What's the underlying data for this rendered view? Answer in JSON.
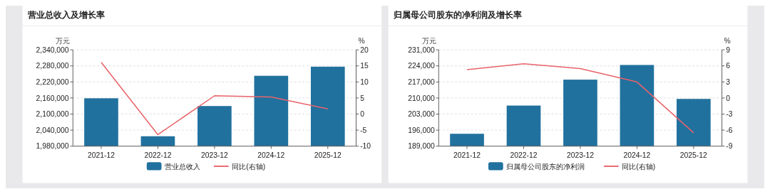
{
  "chart_data": [
    {
      "type": "bar",
      "title": "营业总收入及增长率",
      "categories": [
        "2021-12",
        "2022-12",
        "2023-12",
        "2024-12",
        "2025-12"
      ],
      "ylabel": "万元",
      "y2label": "%",
      "ylim": [
        1980000,
        2340000
      ],
      "yticks": [
        {
          "value": 1980000,
          "label": "1,980,000"
        },
        {
          "value": 2040000,
          "label": "2,040,000"
        },
        {
          "value": 2100000,
          "label": "2,100,000"
        },
        {
          "value": 2160000,
          "label": "2,160,000"
        },
        {
          "value": 2220000,
          "label": "2,220,000"
        },
        {
          "value": 2280000,
          "label": "2,280,000"
        },
        {
          "value": 2340000,
          "label": "2,340,000"
        }
      ],
      "y2lim": [
        -10,
        20
      ],
      "y2ticks": [
        -10,
        -5,
        0,
        5,
        10,
        15,
        20
      ],
      "grid": "y",
      "legend": "bottom",
      "series": [
        {
          "name": "营业总收入",
          "color": "#21719e",
          "values": [
            2159000,
            2017000,
            2130000,
            2243000,
            2277000
          ]
        },
        {
          "name": "同比(右轴)",
          "type": "line",
          "axis": "y2",
          "color": "#e8636a",
          "values": [
            16.1,
            -6.4,
            5.7,
            5.3,
            1.6
          ]
        }
      ]
    },
    {
      "type": "bar",
      "title": "归属母公司股东的净利润及增长率",
      "categories": [
        "2021-12",
        "2022-12",
        "2023-12",
        "2024-12",
        "2025-12"
      ],
      "ylabel": "万元",
      "y2label": "%",
      "ylim": [
        189000,
        231000
      ],
      "yticks": [
        {
          "value": 189000,
          "label": "189,000"
        },
        {
          "value": 196000,
          "label": "196,000"
        },
        {
          "value": 203000,
          "label": "203,000"
        },
        {
          "value": 210000,
          "label": "210,000"
        },
        {
          "value": 217000,
          "label": "217,000"
        },
        {
          "value": 224000,
          "label": "224,000"
        },
        {
          "value": 231000,
          "label": "231,000"
        }
      ],
      "y2lim": [
        -9,
        9
      ],
      "y2ticks": [
        -9,
        -6,
        -3,
        0,
        3,
        6,
        9
      ],
      "grid": "y",
      "legend": "bottom",
      "series": [
        {
          "name": "归属母公司股东的净利润",
          "color": "#21719e",
          "values": [
            194400,
            206700,
            218000,
            224400,
            209600
          ]
        },
        {
          "name": "同比(右轴)",
          "type": "line",
          "axis": "y2",
          "color": "#e8636a",
          "values": [
            5.3,
            6.4,
            5.5,
            3.0,
            -6.5
          ]
        }
      ]
    }
  ]
}
